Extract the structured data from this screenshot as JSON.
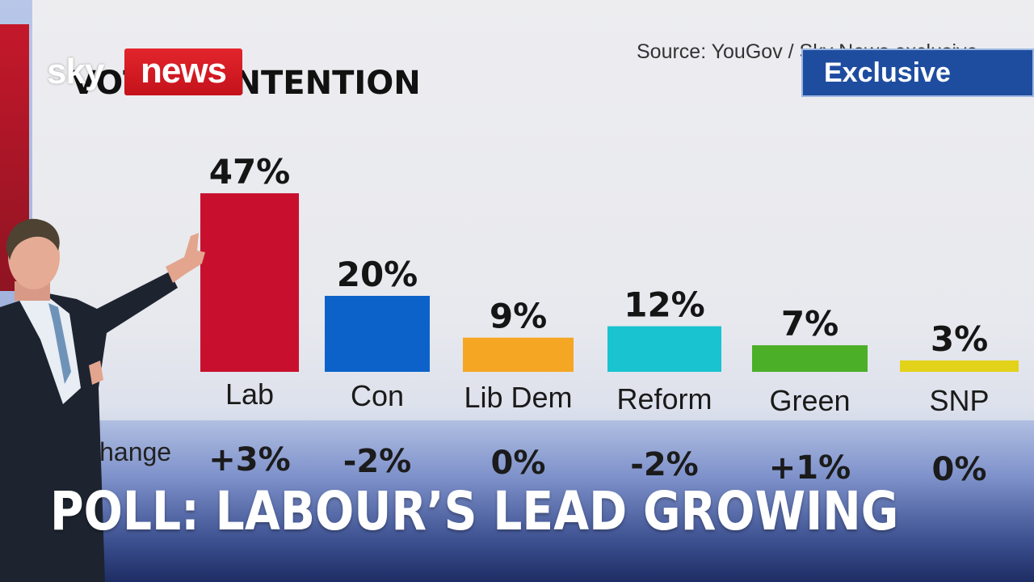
{
  "chart_data": {
    "type": "bar",
    "title": "VOTING INTENTION",
    "source": "Source: YouGov / Sky News exclusive",
    "categories": [
      "Lab",
      "Con",
      "Lib Dem",
      "Reform",
      "Green",
      "SNP"
    ],
    "values": [
      47,
      20,
      9,
      12,
      7,
      3
    ],
    "value_labels": [
      "47%",
      "20%",
      "9%",
      "12%",
      "7%",
      "3%"
    ],
    "change_row_label": "Change",
    "changes": [
      "+3%",
      "-2%",
      "0%",
      "-2%",
      "+1%",
      "0%"
    ],
    "colors": [
      "#c8102e",
      "#0d62c9",
      "#f5a623",
      "#19c3d0",
      "#4caf28",
      "#e3d21a"
    ],
    "ylim": [
      0,
      50
    ],
    "grid": false
  },
  "logo": {
    "sky": "sky",
    "news": "news"
  },
  "badge": {
    "label": "Exclusive"
  },
  "headline": "POLL: LABOUR’S LEAD GROWING",
  "colors": {
    "brand_red": "#e3252c",
    "badge_blue": "#1e4da0",
    "band_navy": "#2e3f73"
  }
}
